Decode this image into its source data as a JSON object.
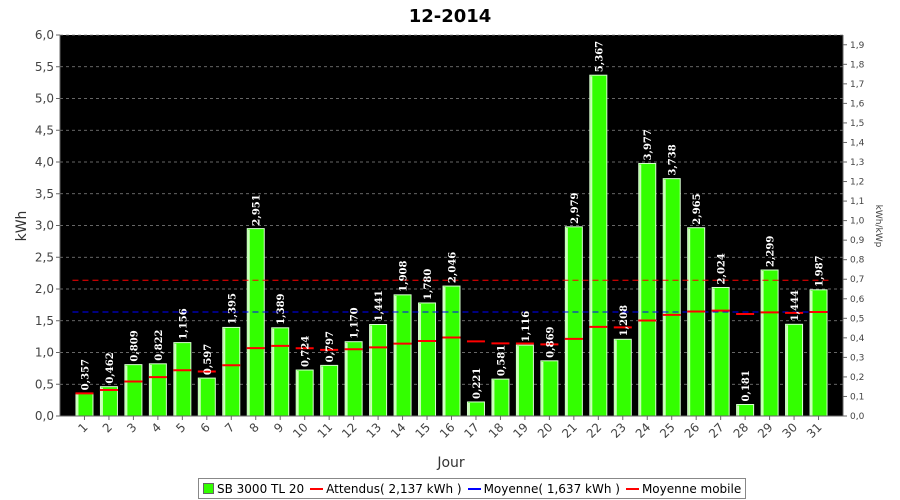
{
  "chart_data": {
    "type": "bar",
    "title": "12-2014",
    "xlabel": "Jour",
    "ylabel": "kWh",
    "y2label": "kWh/kWp",
    "ylim": [
      0,
      6.0
    ],
    "y2lim": [
      0,
      1.95
    ],
    "yticks": [
      "0,0",
      "0,5",
      "1,0",
      "1,5",
      "2,0",
      "2,5",
      "3,0",
      "3,5",
      "4,0",
      "4,5",
      "5,0",
      "5,5",
      "6,0"
    ],
    "y2ticks": [
      "0,0",
      "0,1",
      "0,2",
      "0,3",
      "0,4",
      "0,5",
      "0,6",
      "0,7",
      "0,8",
      "0,9",
      "1,0",
      "1,1",
      "1,2",
      "1,3",
      "1,4",
      "1,5",
      "1,6",
      "1,7",
      "1,8",
      "1,9"
    ],
    "categories": [
      "1",
      "2",
      "3",
      "4",
      "5",
      "6",
      "7",
      "8",
      "9",
      "10",
      "11",
      "12",
      "13",
      "14",
      "15",
      "16",
      "17",
      "18",
      "19",
      "20",
      "21",
      "22",
      "23",
      "24",
      "25",
      "26",
      "27",
      "28",
      "29",
      "30",
      "31"
    ],
    "series": [
      {
        "name": "SB 3000 TL 20",
        "values": [
          0.357,
          0.462,
          0.809,
          0.822,
          1.156,
          0.597,
          1.395,
          2.951,
          1.389,
          0.724,
          0.797,
          1.17,
          1.441,
          1.908,
          1.78,
          2.046,
          0.221,
          0.581,
          1.116,
          0.869,
          2.979,
          5.367,
          1.208,
          3.977,
          3.738,
          2.965,
          2.024,
          0.181,
          2.299,
          1.444,
          1.987
        ],
        "labels": [
          "0,357",
          "0,462",
          "0,809",
          "0,822",
          "1,156",
          "0,597",
          "1,395",
          "2,951",
          "1,389",
          "0,724",
          "0,797",
          "1,170",
          "1,441",
          "1,908",
          "1,780",
          "2,046",
          "0,221",
          "0,581",
          "1,116",
          "0,869",
          "2,979",
          "5,367",
          "1,208",
          "3,977",
          "3,738",
          "2,965",
          "2,024",
          "0,181",
          "2,299",
          "1,444",
          "1,987"
        ],
        "color": "#33ff00"
      },
      {
        "name": "Moyenne mobile",
        "values": [
          0.357,
          0.41,
          0.543,
          0.613,
          0.721,
          0.7,
          0.799,
          1.068,
          1.104,
          1.066,
          1.041,
          1.051,
          1.081,
          1.14,
          1.182,
          1.236,
          1.176,
          1.143,
          1.141,
          1.127,
          1.215,
          1.404,
          1.396,
          1.504,
          1.593,
          1.646,
          1.66,
          1.607,
          1.631,
          1.625,
          1.637
        ],
        "color": "#ff0000"
      }
    ],
    "reference_lines": [
      {
        "name": "Attendus( 2,137 kWh )",
        "value": 2.137,
        "color": "#ff0000"
      },
      {
        "name": "Moyenne( 1,637 kWh )",
        "value": 1.637,
        "color": "#0000ff"
      }
    ],
    "legend": [
      {
        "label": "SB 3000 TL 20",
        "kind": "box",
        "color": "#33ff00"
      },
      {
        "label": "Attendus( 2,137 kWh )",
        "kind": "line",
        "color": "#ff0000"
      },
      {
        "label": "Moyenne( 1,637 kWh )",
        "kind": "line",
        "color": "#0000ff"
      },
      {
        "label": "Moyenne mobile",
        "kind": "line",
        "color": "#ff0000"
      }
    ],
    "legend_position": "bottom",
    "grid": true,
    "background": "#000000"
  }
}
